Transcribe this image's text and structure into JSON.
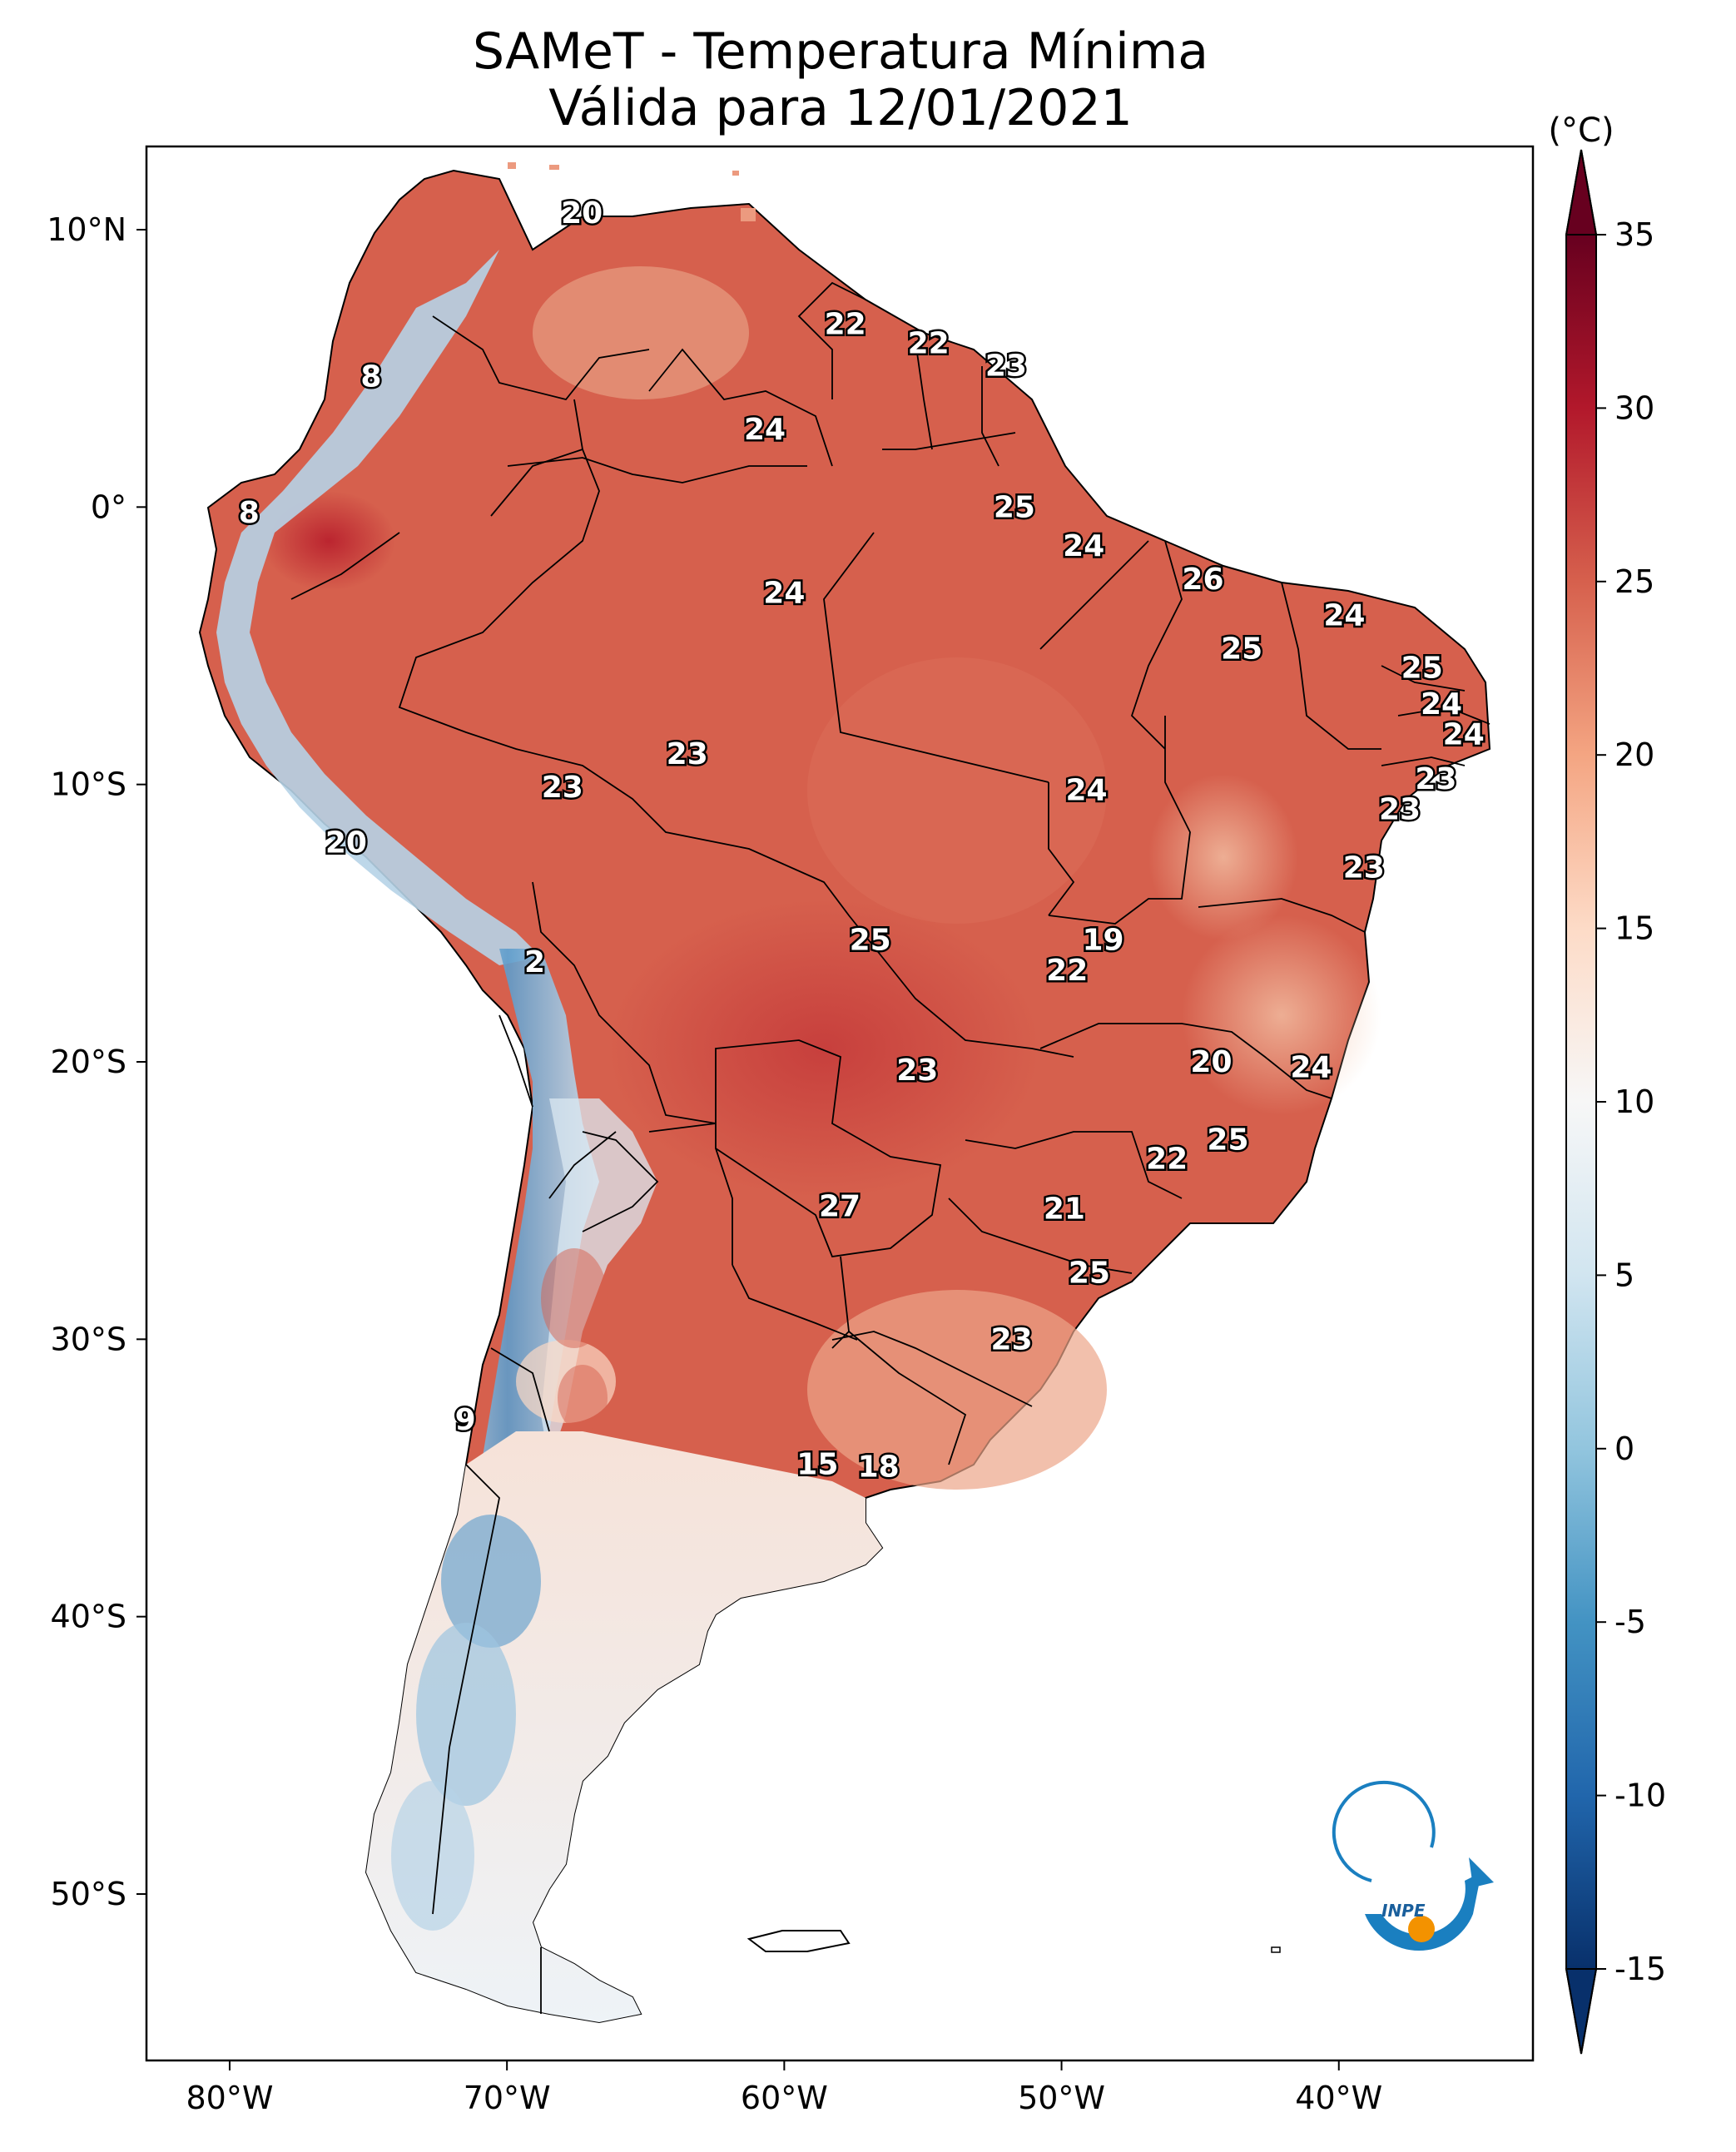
{
  "title": {
    "line1": "SAMeT - Temperatura Mínima",
    "line2": "Válida para 12/01/2021"
  },
  "colorbar": {
    "unit": "(°C)",
    "min": -15,
    "max": 35,
    "ticks": [
      "35",
      "30",
      "25",
      "20",
      "15",
      "10",
      "5",
      "0",
      "-5",
      "-10",
      "-15"
    ],
    "tick_values": [
      35,
      30,
      25,
      20,
      15,
      10,
      5,
      0,
      -5,
      -10,
      -15
    ],
    "colors": [
      "#08306b",
      "#2166ac",
      "#4393c3",
      "#92c5de",
      "#d1e5f0",
      "#f7f7f7",
      "#fddbc7",
      "#f4a582",
      "#d6604d",
      "#b2182b",
      "#67001f"
    ]
  },
  "axes": {
    "lon_labels": [
      "80°W",
      "70°W",
      "60°W",
      "50°W",
      "40°W"
    ],
    "lon_values": [
      -80,
      -70,
      -60,
      -50,
      -40
    ],
    "lat_labels": [
      "10°N",
      "0°",
      "10°S",
      "20°S",
      "30°S",
      "40°S",
      "50°S"
    ],
    "lat_values": [
      10,
      0,
      -10,
      -20,
      -30,
      -40,
      -50
    ],
    "lon_range": [
      -83,
      -33
    ],
    "lat_range": [
      -56,
      13
    ]
  },
  "map_values": [
    {
      "label": "20",
      "lon": -67.3,
      "lat": 10.6
    },
    {
      "label": "22",
      "lon": -57.8,
      "lat": 6.6
    },
    {
      "label": "22",
      "lon": -54.8,
      "lat": 5.9
    },
    {
      "label": "23",
      "lon": -52.0,
      "lat": 5.1
    },
    {
      "label": "8",
      "lon": -74.9,
      "lat": 4.7
    },
    {
      "label": "24",
      "lon": -60.7,
      "lat": 2.8
    },
    {
      "label": "8",
      "lon": -79.3,
      "lat": -0.2
    },
    {
      "label": "25",
      "lon": -51.7,
      "lat": 0.0
    },
    {
      "label": "24",
      "lon": -49.2,
      "lat": -1.4
    },
    {
      "label": "26",
      "lon": -44.9,
      "lat": -2.6
    },
    {
      "label": "24",
      "lon": -60.0,
      "lat": -3.1
    },
    {
      "label": "24",
      "lon": -39.8,
      "lat": -3.9
    },
    {
      "label": "25",
      "lon": -43.5,
      "lat": -5.1
    },
    {
      "label": "25",
      "lon": -37.0,
      "lat": -5.8
    },
    {
      "label": "24",
      "lon": -36.3,
      "lat": -7.1
    },
    {
      "label": "24",
      "lon": -35.5,
      "lat": -8.2
    },
    {
      "label": "23",
      "lon": -36.5,
      "lat": -9.8
    },
    {
      "label": "23",
      "lon": -63.5,
      "lat": -8.9
    },
    {
      "label": "23",
      "lon": -68.0,
      "lat": -10.1
    },
    {
      "label": "24",
      "lon": -49.1,
      "lat": -10.2
    },
    {
      "label": "23",
      "lon": -37.8,
      "lat": -10.9
    },
    {
      "label": "20",
      "lon": -75.8,
      "lat": -12.1
    },
    {
      "label": "23",
      "lon": -39.1,
      "lat": -13.0
    },
    {
      "label": "25",
      "lon": -56.9,
      "lat": -15.6
    },
    {
      "label": "19",
      "lon": -48.5,
      "lat": -15.6
    },
    {
      "label": "22",
      "lon": -49.8,
      "lat": -16.7
    },
    {
      "label": "2",
      "lon": -69.0,
      "lat": -16.4
    },
    {
      "label": "20",
      "lon": -44.6,
      "lat": -20.0
    },
    {
      "label": "24",
      "lon": -41.0,
      "lat": -20.2
    },
    {
      "label": "23",
      "lon": -55.2,
      "lat": -20.3
    },
    {
      "label": "25",
      "lon": -44.0,
      "lat": -22.8
    },
    {
      "label": "22",
      "lon": -46.2,
      "lat": -23.5
    },
    {
      "label": "27",
      "lon": -58.0,
      "lat": -25.2
    },
    {
      "label": "21",
      "lon": -49.9,
      "lat": -25.3
    },
    {
      "label": "25",
      "lon": -49.0,
      "lat": -27.6
    },
    {
      "label": "23",
      "lon": -51.8,
      "lat": -30.0
    },
    {
      "label": "9",
      "lon": -71.5,
      "lat": -32.9
    },
    {
      "label": "15",
      "lon": -58.8,
      "lat": -34.5
    },
    {
      "label": "18",
      "lon": -56.6,
      "lat": -34.6
    }
  ],
  "logo": {
    "text": "INPE"
  }
}
